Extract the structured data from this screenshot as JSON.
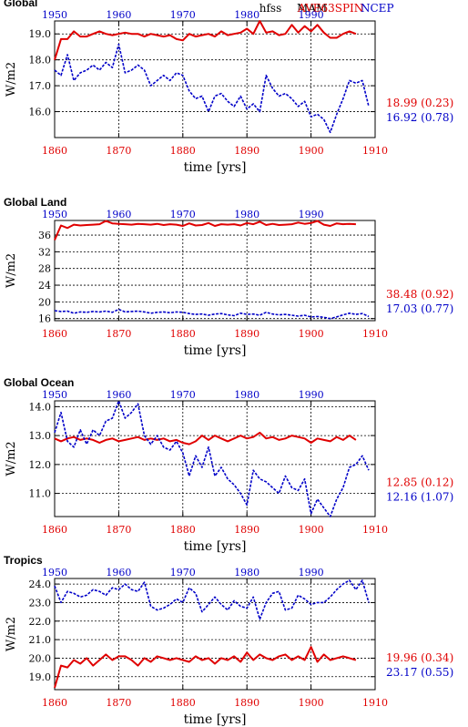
{
  "header": {
    "variable": "hfss",
    "season": "MAM",
    "run_label": "AVE63SPIN",
    "obs_label": "NCEP",
    "run_color": "#e00000",
    "obs_color": "#0000c8"
  },
  "chart_data": [
    {
      "type": "line",
      "title": "Global",
      "xlabel": "time [yrs]",
      "ylabel": "W/m2",
      "xlim": [
        1860,
        1910
      ],
      "top_xlim": [
        1950,
        2000
      ],
      "ylim": [
        15.0,
        19.5
      ],
      "x_ticks": [
        "1860",
        "1870",
        "1880",
        "1890",
        "1900",
        "1910"
      ],
      "top_x_ticks": [
        "1950",
        "1960",
        "1970",
        "1980",
        "1990"
      ],
      "y_ticks": [
        "16.0",
        "17.0",
        "18.0",
        "19.0"
      ],
      "grid": true,
      "series": [
        {
          "name": "AVE63SPIN",
          "axis": "bottom",
          "color": "#e00000",
          "stat": "18.99 (0.23)",
          "x": [
            1860,
            1861,
            1862,
            1863,
            1864,
            1865,
            1866,
            1867,
            1868,
            1869,
            1870,
            1871,
            1872,
            1873,
            1874,
            1875,
            1876,
            1877,
            1878,
            1879,
            1880,
            1881,
            1882,
            1883,
            1884,
            1885,
            1886,
            1887,
            1888,
            1889,
            1890,
            1891,
            1892,
            1893,
            1894,
            1895,
            1896,
            1897,
            1898,
            1899,
            1900,
            1901,
            1902,
            1903,
            1904,
            1905,
            1906,
            1907
          ],
          "values": [
            18.0,
            18.8,
            18.8,
            19.1,
            18.9,
            18.9,
            19.0,
            19.1,
            19.0,
            18.95,
            19.0,
            19.05,
            19.0,
            19.0,
            18.9,
            19.0,
            18.95,
            18.9,
            18.95,
            18.8,
            18.75,
            19.0,
            18.9,
            18.95,
            19.0,
            18.9,
            19.1,
            18.95,
            19.0,
            19.05,
            19.2,
            19.0,
            19.5,
            19.05,
            19.1,
            18.95,
            19.0,
            19.35,
            19.05,
            19.3,
            19.1,
            19.35,
            19.05,
            18.85,
            18.85,
            19.0,
            19.1,
            19.0
          ]
        },
        {
          "name": "NCEP",
          "axis": "top",
          "color": "#0000c8",
          "stat": "16.92 (0.78)",
          "x": [
            1950,
            1951,
            1952,
            1953,
            1954,
            1955,
            1956,
            1957,
            1958,
            1959,
            1960,
            1961,
            1962,
            1963,
            1964,
            1965,
            1966,
            1967,
            1968,
            1969,
            1970,
            1971,
            1972,
            1973,
            1974,
            1975,
            1976,
            1977,
            1978,
            1979,
            1980,
            1981,
            1982,
            1983,
            1984,
            1985,
            1986,
            1987,
            1988,
            1989,
            1990,
            1991,
            1992,
            1993,
            1994,
            1995,
            1996,
            1997,
            1998,
            1999
          ],
          "values": [
            17.6,
            17.4,
            18.2,
            17.2,
            17.5,
            17.6,
            17.8,
            17.6,
            17.9,
            17.7,
            18.6,
            17.5,
            17.6,
            17.8,
            17.6,
            17.0,
            17.2,
            17.4,
            17.2,
            17.5,
            17.4,
            16.8,
            16.5,
            16.6,
            16.0,
            16.6,
            16.7,
            16.4,
            16.2,
            16.6,
            16.1,
            16.3,
            16.0,
            17.4,
            16.9,
            16.6,
            16.7,
            16.5,
            16.2,
            16.4,
            15.8,
            15.9,
            15.7,
            15.2,
            15.9,
            16.5,
            17.2,
            17.1,
            17.2,
            16.2
          ]
        }
      ]
    },
    {
      "type": "line",
      "title": "Global Land",
      "xlabel": "time [yrs]",
      "ylabel": "W/m2",
      "xlim": [
        1860,
        1910
      ],
      "top_xlim": [
        1950,
        2000
      ],
      "ylim": [
        15.5,
        39.5
      ],
      "x_ticks": [
        "1860",
        "1870",
        "1880",
        "1890",
        "1900",
        "1910"
      ],
      "top_x_ticks": [
        "1950",
        "1960",
        "1970",
        "1980",
        "1990"
      ],
      "y_ticks": [
        "16",
        "20",
        "24",
        "28",
        "32",
        "36"
      ],
      "grid": true,
      "series": [
        {
          "name": "AVE63SPIN",
          "axis": "bottom",
          "color": "#e00000",
          "stat": "38.48 (0.92)",
          "x": [
            1860,
            1861,
            1862,
            1863,
            1864,
            1865,
            1866,
            1867,
            1868,
            1869,
            1870,
            1871,
            1872,
            1873,
            1874,
            1875,
            1876,
            1877,
            1878,
            1879,
            1880,
            1881,
            1882,
            1883,
            1884,
            1885,
            1886,
            1887,
            1888,
            1889,
            1890,
            1891,
            1892,
            1893,
            1894,
            1895,
            1896,
            1897,
            1898,
            1899,
            1900,
            1901,
            1902,
            1903,
            1904,
            1905,
            1906,
            1907
          ],
          "values": [
            34.8,
            38.3,
            37.7,
            38.5,
            38.3,
            38.4,
            38.5,
            38.6,
            39.4,
            38.8,
            38.7,
            38.6,
            38.5,
            38.7,
            38.6,
            38.5,
            38.7,
            38.4,
            38.6,
            38.5,
            38.2,
            38.8,
            38.3,
            38.4,
            38.9,
            38.2,
            38.6,
            38.5,
            38.6,
            38.3,
            38.9,
            38.6,
            39.2,
            38.4,
            38.7,
            38.4,
            38.5,
            38.6,
            39.0,
            38.7,
            38.9,
            39.4,
            38.5,
            38.2,
            38.8,
            38.6,
            38.7,
            38.6
          ]
        },
        {
          "name": "NCEP",
          "axis": "top",
          "color": "#0000c8",
          "stat": "17.03 (0.77)",
          "x": [
            1950,
            1951,
            1952,
            1953,
            1954,
            1955,
            1956,
            1957,
            1958,
            1959,
            1960,
            1961,
            1962,
            1963,
            1964,
            1965,
            1966,
            1967,
            1968,
            1969,
            1970,
            1971,
            1972,
            1973,
            1974,
            1975,
            1976,
            1977,
            1978,
            1979,
            1980,
            1981,
            1982,
            1983,
            1984,
            1985,
            1986,
            1987,
            1988,
            1989,
            1990,
            1991,
            1992,
            1993,
            1994,
            1995,
            1996,
            1997,
            1998,
            1999
          ],
          "values": [
            17.9,
            17.7,
            17.8,
            17.3,
            17.6,
            17.5,
            17.7,
            17.6,
            17.8,
            17.5,
            18.2,
            17.6,
            17.7,
            17.8,
            17.6,
            17.3,
            17.5,
            17.6,
            17.4,
            17.6,
            17.5,
            17.2,
            17.0,
            17.1,
            16.8,
            17.1,
            17.2,
            16.9,
            16.7,
            17.3,
            17.0,
            17.1,
            16.8,
            17.5,
            17.1,
            16.9,
            17.0,
            16.8,
            16.6,
            16.8,
            16.4,
            16.5,
            16.3,
            16.0,
            16.4,
            16.9,
            17.3,
            17.0,
            17.2,
            16.5
          ]
        }
      ]
    },
    {
      "type": "line",
      "title": "Global Ocean",
      "xlabel": "time [yrs]",
      "ylabel": "W/m2",
      "xlim": [
        1860,
        1910
      ],
      "top_xlim": [
        1950,
        2000
      ],
      "ylim": [
        10.2,
        14.2
      ],
      "x_ticks": [
        "1860",
        "1870",
        "1880",
        "1890",
        "1900",
        "1910"
      ],
      "top_x_ticks": [
        "1950",
        "1960",
        "1970",
        "1980",
        "1990"
      ],
      "y_ticks": [
        "11.0",
        "12.0",
        "13.0",
        "14.0"
      ],
      "grid": true,
      "series": [
        {
          "name": "AVE63SPIN",
          "axis": "bottom",
          "color": "#e00000",
          "stat": "12.85 (0.12)",
          "x": [
            1860,
            1861,
            1862,
            1863,
            1864,
            1865,
            1866,
            1867,
            1868,
            1869,
            1870,
            1871,
            1872,
            1873,
            1874,
            1875,
            1876,
            1877,
            1878,
            1879,
            1880,
            1881,
            1882,
            1883,
            1884,
            1885,
            1886,
            1887,
            1888,
            1889,
            1890,
            1891,
            1892,
            1893,
            1894,
            1895,
            1896,
            1897,
            1898,
            1899,
            1900,
            1901,
            1902,
            1903,
            1904,
            1905,
            1906,
            1907
          ],
          "values": [
            12.9,
            12.8,
            12.9,
            12.95,
            12.85,
            12.9,
            12.85,
            12.75,
            12.85,
            12.9,
            12.8,
            12.85,
            12.9,
            12.95,
            12.85,
            12.9,
            12.85,
            12.9,
            12.8,
            12.85,
            12.75,
            12.7,
            12.8,
            13.0,
            12.85,
            13.0,
            12.9,
            12.8,
            12.9,
            13.0,
            12.9,
            12.95,
            13.1,
            12.9,
            12.95,
            12.85,
            12.9,
            13.0,
            12.95,
            12.9,
            12.75,
            12.9,
            12.85,
            12.8,
            12.95,
            12.85,
            13.0,
            12.85
          ]
        },
        {
          "name": "NCEP",
          "axis": "top",
          "color": "#0000c8",
          "stat": "12.16 (1.07)",
          "x": [
            1950,
            1951,
            1952,
            1953,
            1954,
            1955,
            1956,
            1957,
            1958,
            1959,
            1960,
            1961,
            1962,
            1963,
            1964,
            1965,
            1966,
            1967,
            1968,
            1969,
            1970,
            1971,
            1972,
            1973,
            1974,
            1975,
            1976,
            1977,
            1978,
            1979,
            1980,
            1981,
            1982,
            1983,
            1984,
            1985,
            1986,
            1987,
            1988,
            1989,
            1990,
            1991,
            1992,
            1993,
            1994,
            1995,
            1996,
            1997,
            1998,
            1999
          ],
          "values": [
            13.1,
            13.8,
            12.8,
            12.6,
            13.2,
            12.7,
            13.2,
            13.0,
            13.5,
            13.6,
            14.2,
            13.6,
            13.8,
            14.1,
            13.0,
            12.7,
            13.0,
            12.6,
            12.5,
            12.8,
            12.4,
            11.6,
            12.3,
            11.9,
            12.6,
            11.6,
            11.9,
            11.5,
            11.3,
            11.0,
            10.6,
            11.8,
            11.5,
            11.4,
            11.2,
            11.0,
            11.6,
            11.2,
            11.1,
            11.5,
            10.3,
            10.8,
            10.5,
            10.2,
            10.8,
            11.2,
            11.9,
            12.0,
            12.3,
            11.8
          ]
        }
      ]
    },
    {
      "type": "line",
      "title": "Tropics",
      "xlabel": "time [yrs]",
      "ylabel": "W/m2",
      "xlim": [
        1860,
        1910
      ],
      "top_xlim": [
        1950,
        2000
      ],
      "ylim": [
        18.3,
        24.3
      ],
      "x_ticks": [
        "1860",
        "1870",
        "1880",
        "1890",
        "1900",
        "1910"
      ],
      "top_x_ticks": [
        "1950",
        "1960",
        "1970",
        "1980",
        "1990"
      ],
      "y_ticks": [
        "19.0",
        "20.0",
        "21.0",
        "22.0",
        "23.0",
        "24.0"
      ],
      "grid": true,
      "series": [
        {
          "name": "AVE63SPIN",
          "axis": "bottom",
          "color": "#e00000",
          "stat": "19.96 (0.34)",
          "x": [
            1860,
            1861,
            1862,
            1863,
            1864,
            1865,
            1866,
            1867,
            1868,
            1869,
            1870,
            1871,
            1872,
            1873,
            1874,
            1875,
            1876,
            1877,
            1878,
            1879,
            1880,
            1881,
            1882,
            1883,
            1884,
            1885,
            1886,
            1887,
            1888,
            1889,
            1890,
            1891,
            1892,
            1893,
            1894,
            1895,
            1896,
            1897,
            1898,
            1899,
            1900,
            1901,
            1902,
            1903,
            1904,
            1905,
            1906,
            1907
          ],
          "values": [
            18.4,
            19.6,
            19.5,
            19.9,
            19.7,
            20.0,
            19.6,
            19.9,
            20.2,
            19.9,
            20.1,
            20.1,
            19.9,
            19.6,
            20.0,
            19.8,
            20.1,
            20.0,
            19.9,
            20.0,
            19.9,
            19.8,
            20.1,
            19.9,
            20.0,
            19.7,
            20.0,
            19.9,
            20.1,
            19.8,
            20.3,
            19.9,
            20.2,
            20.0,
            19.9,
            20.1,
            20.2,
            19.9,
            20.1,
            19.9,
            20.6,
            19.8,
            20.2,
            19.9,
            20.0,
            20.1,
            20.0,
            19.9
          ]
        },
        {
          "name": "NCEP",
          "axis": "top",
          "color": "#0000c8",
          "stat": "23.17 (0.55)",
          "x": [
            1950,
            1951,
            1952,
            1953,
            1954,
            1955,
            1956,
            1957,
            1958,
            1959,
            1960,
            1961,
            1962,
            1963,
            1964,
            1965,
            1966,
            1967,
            1968,
            1969,
            1970,
            1971,
            1972,
            1973,
            1974,
            1975,
            1976,
            1977,
            1978,
            1979,
            1980,
            1981,
            1982,
            1983,
            1984,
            1985,
            1986,
            1987,
            1988,
            1989,
            1990,
            1991,
            1992,
            1993,
            1994,
            1995,
            1996,
            1997,
            1998,
            1999
          ],
          "values": [
            23.9,
            23.0,
            23.6,
            23.5,
            23.3,
            23.4,
            23.7,
            23.6,
            23.4,
            23.8,
            23.7,
            24.0,
            23.7,
            23.6,
            24.1,
            22.8,
            22.6,
            22.7,
            22.9,
            23.2,
            23.0,
            23.8,
            23.5,
            22.5,
            22.9,
            23.3,
            22.9,
            22.6,
            23.1,
            22.8,
            22.7,
            23.3,
            22.1,
            23.0,
            23.5,
            23.6,
            22.6,
            22.7,
            23.4,
            23.2,
            22.9,
            23.0,
            23.0,
            23.3,
            23.7,
            24.0,
            24.2,
            23.7,
            24.2,
            23.0
          ]
        }
      ]
    }
  ]
}
